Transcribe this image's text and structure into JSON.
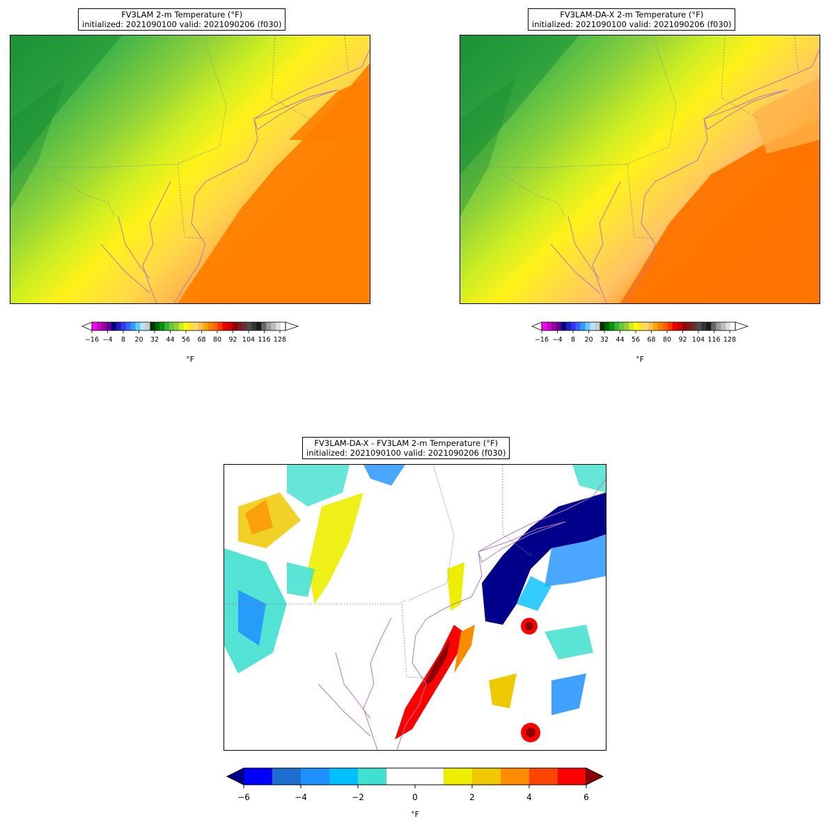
{
  "panels": [
    {
      "id": "fv3lam",
      "title_line1": "FV3LAM 2-m Temperature (°F)",
      "title_line2": "initialized: 2021090100 valid: 2021090206 (f030)",
      "colorbar_ticks": [
        "−16",
        "−4",
        "8",
        "20",
        "32",
        "44",
        "56",
        "68",
        "80",
        "92",
        "104",
        "116",
        "128"
      ],
      "colorbar_unit": "°F"
    },
    {
      "id": "fv3lam-da-x",
      "title_line1": "FV3LAM-DA-X 2-m Temperature (°F)",
      "title_line2": "initialized: 2021090100 valid: 2021090206 (f030)",
      "colorbar_ticks": [
        "−16",
        "−4",
        "8",
        "20",
        "32",
        "44",
        "56",
        "68",
        "80",
        "92",
        "104",
        "116",
        "128"
      ],
      "colorbar_unit": "°F"
    },
    {
      "id": "difference",
      "title_line1": "FV3LAM-DA-X - FV3LAM 2-m Temperature (°F)",
      "title_line2": "initialized: 2021090100 valid: 2021090206 (f030)",
      "colorbar_ticks": [
        "−6",
        "−4",
        "−2",
        "0",
        "2",
        "4",
        "6"
      ],
      "colorbar_unit": "°F"
    }
  ],
  "colors": {
    "temp_scale": [
      "#ff00ff",
      "#cc00cc",
      "#990099",
      "#660099",
      "#000080",
      "#1f1fb4",
      "#3333ff",
      "#3366ff",
      "#3399ff",
      "#66ccff",
      "#b3e6ff",
      "#cccccc",
      "#003300",
      "#006600",
      "#009900",
      "#33b33c",
      "#66cc33",
      "#99cc33",
      "#ccee22",
      "#ffff00",
      "#ffe033",
      "#ffd966",
      "#ffc04d",
      "#ffa500",
      "#ff8000",
      "#ff6600",
      "#ff3300",
      "#e60000",
      "#cc0000",
      "#990000",
      "#801a1a",
      "#663333",
      "#4d4d4d",
      "#333333",
      "#1a1a1a",
      "#666666",
      "#999999",
      "#bbbbbb",
      "#dddddd",
      "#ffffff"
    ],
    "diff_scale": [
      "#0000ff",
      "#1e6ed2",
      "#1e90ff",
      "#00bfff",
      "#40e0d0",
      "#ffffff",
      "#ffffff",
      "#eeee00",
      "#eec900",
      "#ff8c00",
      "#ff4500",
      "#ff0000"
    ],
    "diff_under": "#00008b",
    "diff_over": "#8b0000",
    "coast": "#b07ab0",
    "border": "#888888"
  }
}
